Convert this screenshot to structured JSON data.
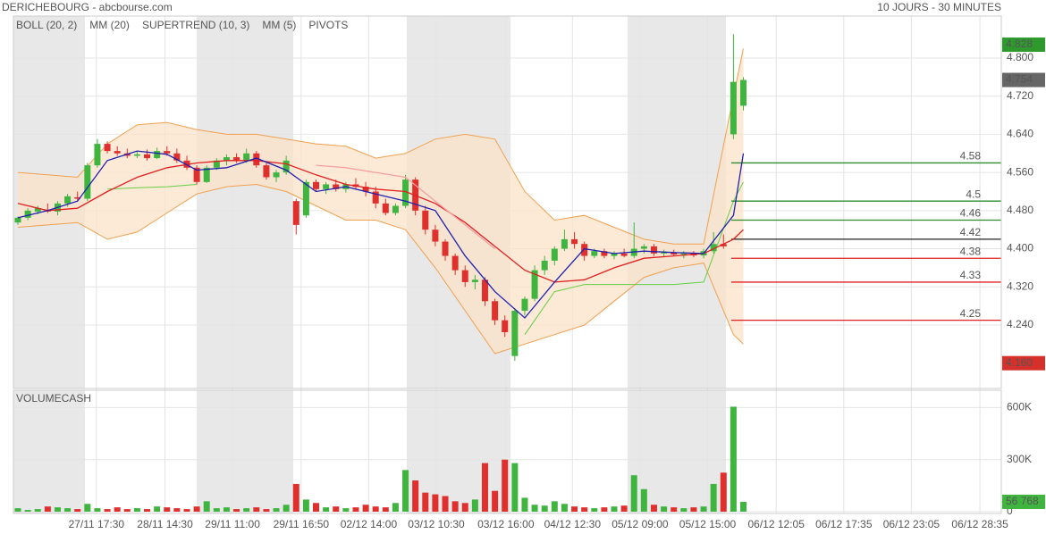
{
  "header": {
    "title": "DERICHEBOURG - abcbourse.com",
    "period": "10 JOURS - 30 MINUTES"
  },
  "chart_data": [
    {
      "type": "candlestick",
      "up_color": "#3fb53f",
      "down_color": "#e0302e",
      "open": [
        4.455,
        4.465,
        4.478,
        4.482,
        4.478,
        4.495,
        4.508,
        4.505,
        4.575,
        4.62,
        4.605,
        4.6,
        4.595,
        4.598,
        4.59,
        4.605,
        4.6,
        4.585,
        4.57,
        4.54,
        4.57,
        4.585,
        4.592,
        4.585,
        4.6,
        4.575,
        4.55,
        4.56,
        4.5,
        4.47,
        4.54,
        4.525,
        4.535,
        4.525,
        4.535,
        4.53,
        4.52,
        4.495,
        4.475,
        4.49,
        4.545,
        4.48,
        4.44,
        4.415,
        4.385,
        4.355,
        4.33,
        4.335,
        4.29,
        4.25,
        4.175,
        4.27,
        4.295,
        4.355,
        4.375,
        4.4,
        4.42,
        4.41,
        4.385,
        4.395,
        4.385,
        4.39,
        4.385,
        4.4,
        4.405,
        4.39,
        4.392,
        4.388,
        4.39,
        4.386,
        4.395,
        4.41,
        4.64,
        4.7
      ],
      "high": [
        4.468,
        4.485,
        4.49,
        4.495,
        4.5,
        4.515,
        4.52,
        4.58,
        4.63,
        4.625,
        4.615,
        4.61,
        4.605,
        4.608,
        4.612,
        4.615,
        4.61,
        4.595,
        4.575,
        4.575,
        4.59,
        4.598,
        4.6,
        4.61,
        4.605,
        4.58,
        4.565,
        4.595,
        4.505,
        4.545,
        4.545,
        4.54,
        4.545,
        4.54,
        4.548,
        4.54,
        4.53,
        4.505,
        4.495,
        4.555,
        4.55,
        4.49,
        4.45,
        4.42,
        4.39,
        4.365,
        4.345,
        4.34,
        4.295,
        4.26,
        4.275,
        4.3,
        4.365,
        4.385,
        4.405,
        4.44,
        4.435,
        4.415,
        4.4,
        4.4,
        4.395,
        4.4,
        4.455,
        4.41,
        4.41,
        4.398,
        4.398,
        4.395,
        4.395,
        4.4,
        4.435,
        4.43,
        4.85,
        4.76
      ],
      "low": [
        4.45,
        4.46,
        4.472,
        4.475,
        4.47,
        4.488,
        4.5,
        4.5,
        4.57,
        4.6,
        4.595,
        4.59,
        4.59,
        4.585,
        4.588,
        4.595,
        4.58,
        4.565,
        4.535,
        4.538,
        4.565,
        4.575,
        4.58,
        4.58,
        4.57,
        4.545,
        4.54,
        4.555,
        4.43,
        4.465,
        4.52,
        4.515,
        4.52,
        4.518,
        4.525,
        4.51,
        4.485,
        4.47,
        4.47,
        4.485,
        4.47,
        4.43,
        4.405,
        4.375,
        4.345,
        4.32,
        4.315,
        4.28,
        4.24,
        4.215,
        4.165,
        4.26,
        4.29,
        4.345,
        4.365,
        4.395,
        4.4,
        4.375,
        4.38,
        4.38,
        4.378,
        4.382,
        4.38,
        4.39,
        4.385,
        4.382,
        4.385,
        4.38,
        4.382,
        4.38,
        4.39,
        4.4,
        4.63,
        4.69
      ],
      "close": [
        4.465,
        4.48,
        4.485,
        4.478,
        4.495,
        4.51,
        4.505,
        4.575,
        4.62,
        4.605,
        4.6,
        4.595,
        4.598,
        4.59,
        4.605,
        4.6,
        4.585,
        4.57,
        4.54,
        4.57,
        4.585,
        4.592,
        4.585,
        4.6,
        4.575,
        4.55,
        4.56,
        4.585,
        4.45,
        4.54,
        4.525,
        4.535,
        4.525,
        4.535,
        4.53,
        4.52,
        4.495,
        4.475,
        4.49,
        4.545,
        4.48,
        4.44,
        4.415,
        4.385,
        4.355,
        4.33,
        4.335,
        4.29,
        4.25,
        4.225,
        4.27,
        4.295,
        4.355,
        4.375,
        4.4,
        4.42,
        4.41,
        4.385,
        4.395,
        4.385,
        4.39,
        4.385,
        4.4,
        4.405,
        4.39,
        4.392,
        4.388,
        4.39,
        4.386,
        4.395,
        4.41,
        4.405,
        4.75,
        4.754
      ],
      "xlim": [
        -0.45,
        98.95
      ],
      "xticks": [
        {
          "value": 7.9,
          "label": "27/11 17:30"
        },
        {
          "value": 14.8,
          "label": "28/11 14:30"
        },
        {
          "value": 21.6,
          "label": "29/11 11:00"
        },
        {
          "value": 28.5,
          "label": "29/11 16:50"
        },
        {
          "value": 35.3,
          "label": "02/12 14:00"
        },
        {
          "value": 42.1,
          "label": "03/12 10:30"
        },
        {
          "value": 49.1,
          "label": "03/12 16:00"
        },
        {
          "value": 55.8,
          "label": "04/12 12:30"
        },
        {
          "value": 62.6,
          "label": "05/12 09:00"
        },
        {
          "value": 69.4,
          "label": "05/12 15:00"
        },
        {
          "value": 76.3,
          "label": "06/12 12:05"
        },
        {
          "value": 83.1,
          "label": "06/12 17:35"
        },
        {
          "value": 89.9,
          "label": "06/12 23:05"
        },
        {
          "value": 96.8,
          "label": "06/12 28:35"
        }
      ],
      "ylim": [
        4.107,
        4.888
      ],
      "yticks": [
        {
          "value": 4.24,
          "label": "4.240"
        },
        {
          "value": 4.32,
          "label": "4.320"
        },
        {
          "value": 4.4,
          "label": "4.400"
        },
        {
          "value": 4.48,
          "label": "4.480"
        },
        {
          "value": 4.56,
          "label": "4.560"
        },
        {
          "value": 4.64,
          "label": "4.640"
        },
        {
          "value": 4.72,
          "label": "4.720"
        },
        {
          "value": 4.8,
          "label": "4.800"
        }
      ],
      "grid": true,
      "series": [
        {
          "name": "BOLL (20, 2)",
          "color": "#f0a050",
          "fill": "#fbe3c8",
          "x": [
            0,
            3,
            6,
            9,
            12,
            15,
            18,
            21,
            24,
            27,
            30,
            33,
            36,
            39,
            42,
            45,
            48,
            51,
            54,
            57,
            60,
            63,
            66,
            69,
            72,
            73
          ],
          "upper": [
            4.56,
            4.555,
            4.55,
            4.62,
            4.66,
            4.665,
            4.65,
            4.64,
            4.64,
            4.63,
            4.62,
            4.615,
            4.59,
            4.6,
            4.63,
            4.64,
            4.63,
            4.52,
            4.46,
            4.47,
            4.445,
            4.42,
            4.41,
            4.41,
            4.72,
            4.82
          ],
          "lower": [
            4.445,
            4.45,
            4.455,
            4.42,
            4.435,
            4.475,
            4.515,
            4.53,
            4.535,
            4.52,
            4.49,
            4.46,
            4.46,
            4.44,
            4.36,
            4.27,
            4.18,
            4.2,
            4.22,
            4.24,
            4.29,
            4.34,
            4.36,
            4.37,
            4.22,
            4.2
          ]
        },
        {
          "name": "MM (20)",
          "color": "#e02020",
          "x": [
            0,
            3,
            6,
            9,
            12,
            15,
            18,
            21,
            24,
            27,
            30,
            33,
            36,
            39,
            42,
            45,
            48,
            51,
            54,
            57,
            60,
            63,
            66,
            69,
            72,
            73
          ],
          "values": [
            4.495,
            4.48,
            4.485,
            4.52,
            4.55,
            4.57,
            4.58,
            4.585,
            4.585,
            4.578,
            4.555,
            4.535,
            4.525,
            4.52,
            4.495,
            4.455,
            4.405,
            4.355,
            4.33,
            4.335,
            4.36,
            4.38,
            4.385,
            4.39,
            4.42,
            4.44
          ]
        },
        {
          "name": "SUPERTREND (10, 3)",
          "color": "#f4a0a0",
          "support_color": "#66cc44",
          "x": [
            0,
            3,
            6,
            9,
            12,
            15,
            18,
            21,
            24,
            27,
            30,
            33,
            36,
            39,
            42,
            45,
            48,
            51,
            54,
            57,
            60,
            63,
            66,
            69,
            72,
            73
          ],
          "values": [
            null,
            null,
            null,
            null,
            null,
            null,
            null,
            null,
            null,
            null,
            4.575,
            4.57,
            4.56,
            4.55,
            4.5,
            4.45,
            4.4,
            null,
            null,
            null,
            null,
            null,
            null,
            null,
            null,
            null
          ],
          "support_values": [
            null,
            null,
            null,
            4.525,
            4.528,
            4.53,
            4.535,
            null,
            null,
            null,
            null,
            null,
            null,
            null,
            null,
            null,
            null,
            4.22,
            4.31,
            4.325,
            4.325,
            4.325,
            4.325,
            4.33,
            4.5,
            4.54
          ]
        },
        {
          "name": "MM (5)",
          "color": "#2020b0",
          "x": [
            0,
            3,
            6,
            9,
            12,
            15,
            18,
            21,
            24,
            27,
            30,
            33,
            36,
            39,
            42,
            45,
            48,
            51,
            54,
            57,
            60,
            63,
            66,
            69,
            72,
            73
          ],
          "values": [
            4.465,
            4.48,
            4.5,
            4.585,
            4.605,
            4.598,
            4.565,
            4.57,
            4.59,
            4.565,
            4.52,
            4.53,
            4.515,
            4.5,
            4.48,
            4.385,
            4.31,
            4.255,
            4.33,
            4.4,
            4.39,
            4.395,
            4.392,
            4.39,
            4.47,
            4.6
          ]
        },
        {
          "name": "PIVOTS",
          "color": "#333333",
          "levels": [
            {
              "value": 4.58,
              "color": "#2e8b2e"
            },
            {
              "value": 4.5,
              "color": "#2e8b2e"
            },
            {
              "value": 4.46,
              "color": "#2e8b2e"
            },
            {
              "value": 4.42,
              "color": "#222222"
            },
            {
              "value": 4.38,
              "color": "#e02020"
            },
            {
              "value": 4.33,
              "color": "#e02020"
            },
            {
              "value": 4.25,
              "color": "#e02020"
            }
          ]
        }
      ],
      "price_labels": [
        {
          "value": 4.828,
          "label": "4.828",
          "color": "#2e9a2e"
        },
        {
          "value": 4.754,
          "label": "4.754",
          "color": "#666666"
        },
        {
          "value": 4.16,
          "label": "4.160",
          "color": "#d6302a"
        }
      ]
    },
    {
      "type": "volume",
      "title": "VOLUMECASH",
      "title_color": "#3fb53f",
      "values": [
        20000,
        10000,
        15000,
        30000,
        25000,
        20000,
        15000,
        45000,
        20000,
        15000,
        25000,
        15000,
        20000,
        15000,
        30000,
        25000,
        20000,
        15000,
        30000,
        60000,
        20000,
        25000,
        15000,
        20000,
        25000,
        15000,
        20000,
        40000,
        160000,
        70000,
        50000,
        25000,
        30000,
        20000,
        25000,
        40000,
        30000,
        25000,
        50000,
        240000,
        180000,
        110000,
        100000,
        90000,
        60000,
        50000,
        70000,
        280000,
        120000,
        300000,
        280000,
        80000,
        40000,
        35000,
        60000,
        45000,
        30000,
        25000,
        20000,
        25000,
        30000,
        35000,
        210000,
        130000,
        40000,
        30000,
        25000,
        20000,
        25000,
        30000,
        160000,
        225000,
        605000,
        56768
      ],
      "ylim": [
        0,
        700000
      ],
      "yticks": [
        0,
        {
          "value": 300000,
          "label": "300K"
        },
        {
          "value": 600000,
          "label": "600K"
        }
      ],
      "grid": true,
      "last_label": {
        "value": 56768,
        "label": "56 768",
        "color": "#3fb53f"
      }
    }
  ]
}
